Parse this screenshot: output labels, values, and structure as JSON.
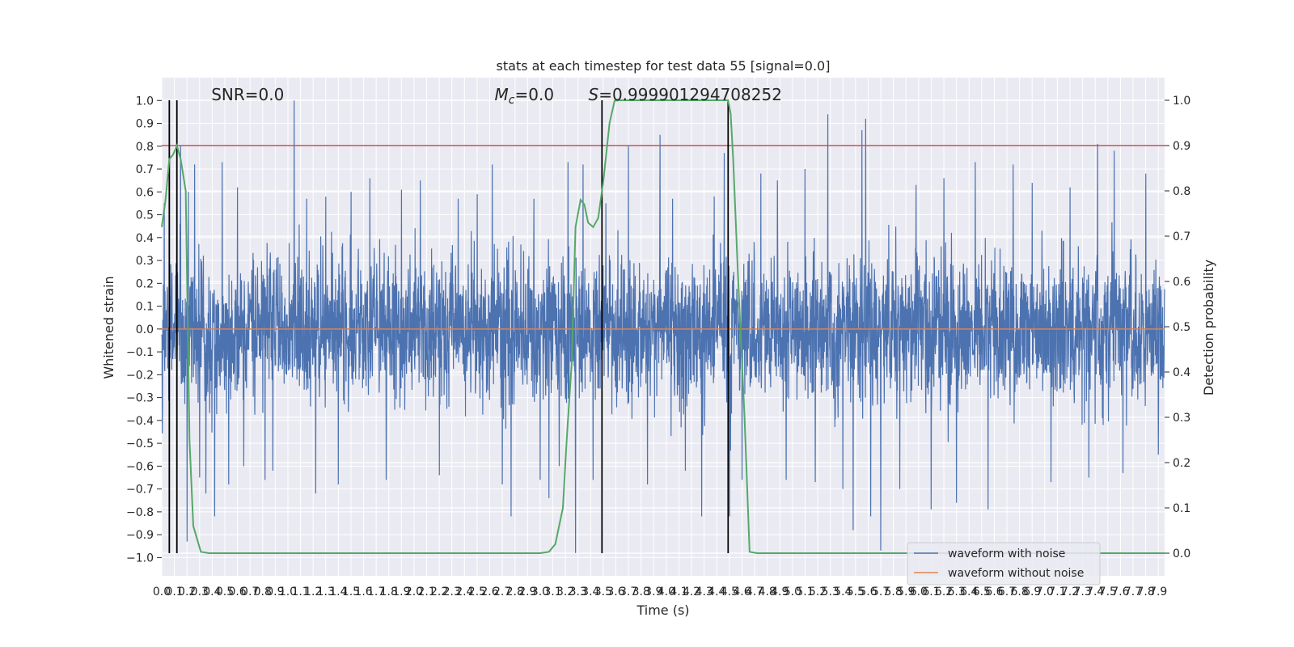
{
  "chart_data": {
    "type": "line",
    "title": "stats at each timestep for test data 55 [signal=0.0]",
    "xlabel": "Time (s)",
    "ylabel": "Whitened strain",
    "ylabel_right": "Detection probability",
    "xlim": [
      0.0,
      7.95
    ],
    "ylim": [
      -1.08,
      1.1
    ],
    "ylim_right": [
      -0.05,
      1.05
    ],
    "x_ticks": [
      0.0,
      0.1,
      0.2,
      0.3,
      0.4,
      0.5,
      0.6,
      0.7,
      0.8,
      0.9,
      1.0,
      1.1,
      1.2,
      1.3,
      1.4,
      1.5,
      1.6,
      1.7,
      1.8,
      1.9,
      2.0,
      2.1,
      2.2,
      2.3,
      2.4,
      2.5,
      2.6,
      2.7,
      2.8,
      2.9,
      3.0,
      3.1,
      3.2,
      3.3,
      3.4,
      3.5,
      3.6,
      3.7,
      3.8,
      3.9,
      4.0,
      4.1,
      4.2,
      4.3,
      4.4,
      4.5,
      4.6,
      4.7,
      4.8,
      4.9,
      5.0,
      5.1,
      5.2,
      5.3,
      5.4,
      5.5,
      5.6,
      5.7,
      5.8,
      5.9,
      6.0,
      6.1,
      6.2,
      6.3,
      6.4,
      6.5,
      6.6,
      6.7,
      6.8,
      6.9,
      7.0,
      7.1,
      7.2,
      7.3,
      7.4,
      7.5,
      7.6,
      7.7,
      7.8,
      7.9
    ],
    "x_tick_labels": [
      "0.0",
      "0.1",
      "0.2",
      "0.3",
      "0.4",
      "0.5",
      "0.6",
      "0.7",
      "0.8",
      "0.9",
      "1.0",
      "1.1",
      "1.2",
      "1.3",
      "1.4",
      "1.5",
      "1.6",
      "1.7",
      "1.8",
      "1.9",
      "2.0",
      "2.1",
      "2.2",
      "2.3",
      "2.4",
      "2.5",
      "2.6",
      "2.7",
      "2.8",
      "2.9",
      "3.0",
      "3.1",
      "3.2",
      "3.3",
      "3.4",
      "3.5",
      "3.6",
      "3.7",
      "3.8",
      "3.9",
      "4.0",
      "4.1",
      "4.2",
      "4.3",
      "4.4",
      "4.5",
      "4.6",
      "4.7",
      "4.8",
      "4.9",
      "5.0",
      "5.1",
      "5.2",
      "5.3",
      "5.4",
      "5.5",
      "5.6",
      "5.7",
      "5.8",
      "5.9",
      "6.0",
      "6.1",
      "6.2",
      "6.3",
      "6.4",
      "6.5",
      "6.6",
      "6.7",
      "6.8",
      "6.9",
      "7.0",
      "7.1",
      "7.2",
      "7.3",
      "7.4",
      "7.5",
      "7.6",
      "7.7",
      "7.8",
      "7.9"
    ],
    "y_ticks": [
      1.0,
      0.9,
      0.8,
      0.7,
      0.6,
      0.5,
      0.4,
      0.3,
      0.2,
      0.1,
      0.0,
      -0.1,
      -0.2,
      -0.3,
      -0.4,
      -0.5,
      -0.6,
      -0.7,
      -0.8,
      -0.9,
      -1.0
    ],
    "y_tick_labels": [
      "1.0",
      "0.9",
      "0.8",
      "0.7",
      "0.6",
      "0.5",
      "0.4",
      "0.3",
      "0.2",
      "0.1",
      "0.0",
      "−0.1",
      "−0.2",
      "−0.3",
      "−0.4",
      "−0.5",
      "−0.6",
      "−0.7",
      "−0.8",
      "−0.9",
      "−1.0"
    ],
    "y_right_ticks": [
      1.0,
      0.9,
      0.8,
      0.7,
      0.6,
      0.5,
      0.4,
      0.3,
      0.2,
      0.1,
      0.0
    ],
    "y_right_tick_labels": [
      "1.0",
      "0.9",
      "0.8",
      "0.7",
      "0.6",
      "0.5",
      "0.4",
      "0.3",
      "0.2",
      "0.1",
      "0.0"
    ],
    "annotations": [
      {
        "text": "SNR=0.0",
        "x": 0.2
      },
      {
        "prefix": "M",
        "sub": "c",
        "suffix": "=0.0",
        "x": 2.6
      },
      {
        "prefix": "S",
        "sub": "",
        "suffix": "=0.999901294708252",
        "x": 3.6
      }
    ],
    "threshold": {
      "y_right": 0.9,
      "color": "#c44e52"
    },
    "vertical_lines": [
      0.06,
      0.12,
      3.49,
      4.49
    ],
    "vertical_line_color": "#000000",
    "series": [
      {
        "name": "waveform with noise",
        "color": "#4c72b0",
        "axis": "left",
        "style": "noise",
        "envelope": 0.3,
        "spikes": [
          [
            0.02,
            0.55
          ],
          [
            0.15,
            0.8
          ],
          [
            0.21,
            0.6
          ],
          [
            0.2,
            -0.93
          ],
          [
            0.26,
            0.72
          ],
          [
            0.3,
            -0.65
          ],
          [
            0.35,
            -0.72
          ],
          [
            0.42,
            -0.82
          ],
          [
            0.48,
            0.73
          ],
          [
            0.53,
            -0.68
          ],
          [
            0.6,
            0.62
          ],
          [
            0.65,
            -0.6
          ],
          [
            0.82,
            -0.66
          ],
          [
            0.88,
            -0.62
          ],
          [
            1.05,
            1.0
          ],
          [
            1.15,
            0.57
          ],
          [
            1.22,
            -0.72
          ],
          [
            1.3,
            0.58
          ],
          [
            1.4,
            -0.68
          ],
          [
            1.5,
            0.6
          ],
          [
            1.65,
            0.66
          ],
          [
            1.78,
            -0.66
          ],
          [
            1.9,
            0.61
          ],
          [
            2.05,
            0.65
          ],
          [
            2.2,
            -0.64
          ],
          [
            2.35,
            0.57
          ],
          [
            2.5,
            0.59
          ],
          [
            2.62,
            0.72
          ],
          [
            2.7,
            -0.68
          ],
          [
            2.77,
            -0.82
          ],
          [
            2.95,
            0.57
          ],
          [
            3.0,
            -0.66
          ],
          [
            3.07,
            -0.74
          ],
          [
            3.15,
            -0.6
          ],
          [
            3.22,
            0.73
          ],
          [
            3.28,
            -0.98
          ],
          [
            3.34,
            0.72
          ],
          [
            3.42,
            -0.66
          ],
          [
            3.52,
            0.55
          ],
          [
            3.7,
            0.8
          ],
          [
            3.85,
            -0.68
          ],
          [
            3.95,
            0.85
          ],
          [
            4.05,
            0.57
          ],
          [
            4.15,
            -0.62
          ],
          [
            4.28,
            -0.82
          ],
          [
            4.38,
            0.58
          ],
          [
            4.46,
            0.77
          ],
          [
            4.5,
            -0.82
          ],
          [
            4.6,
            -0.66
          ],
          [
            4.75,
            0.68
          ],
          [
            4.88,
            0.65
          ],
          [
            4.95,
            -0.66
          ],
          [
            5.1,
            0.7
          ],
          [
            5.18,
            -0.67
          ],
          [
            5.28,
            0.94
          ],
          [
            5.4,
            -0.7
          ],
          [
            5.48,
            -0.88
          ],
          [
            5.55,
            0.87
          ],
          [
            5.58,
            0.92
          ],
          [
            5.62,
            -0.82
          ],
          [
            5.7,
            -0.97
          ],
          [
            5.85,
            -0.7
          ],
          [
            5.98,
            0.63
          ],
          [
            6.1,
            -0.79
          ],
          [
            6.2,
            0.66
          ],
          [
            6.3,
            -0.76
          ],
          [
            6.45,
            0.73
          ],
          [
            6.55,
            -0.79
          ],
          [
            6.75,
            0.72
          ],
          [
            6.9,
            0.64
          ],
          [
            7.05,
            -0.67
          ],
          [
            7.2,
            0.62
          ],
          [
            7.35,
            -0.65
          ],
          [
            7.42,
            0.81
          ],
          [
            7.55,
            0.78
          ],
          [
            7.62,
            -0.63
          ],
          [
            7.8,
            0.68
          ],
          [
            7.9,
            -0.55
          ]
        ],
        "values": []
      },
      {
        "name": "waveform without noise",
        "color": "#dd8452",
        "axis": "left",
        "x": [
          0.0,
          7.95
        ],
        "values": [
          0.0,
          0.0
        ]
      },
      {
        "name": "",
        "color": "#55a868",
        "axis": "right",
        "x": [
          0.0,
          0.03,
          0.06,
          0.09,
          0.12,
          0.15,
          0.19,
          0.22,
          0.25,
          0.31,
          0.375,
          0.4,
          0.5,
          1.0,
          2.0,
          3.0,
          3.07,
          3.12,
          3.18,
          3.21,
          3.25,
          3.28,
          3.32,
          3.35,
          3.38,
          3.42,
          3.46,
          3.5,
          3.55,
          3.59,
          3.63,
          3.68,
          3.8,
          4.0,
          4.3,
          4.49,
          4.51,
          4.53,
          4.57,
          4.62,
          4.66,
          4.72,
          5.0,
          6.0,
          7.95
        ],
        "values": [
          0.72,
          0.78,
          0.87,
          0.88,
          0.9,
          0.87,
          0.8,
          0.25,
          0.06,
          0.003,
          0.0,
          0.0,
          0.0,
          0.0,
          0.0,
          0.0,
          0.003,
          0.02,
          0.1,
          0.25,
          0.42,
          0.72,
          0.78,
          0.77,
          0.73,
          0.72,
          0.74,
          0.82,
          0.95,
          0.999,
          1.0,
          1.0,
          1.0,
          1.0,
          1.0,
          1.0,
          0.97,
          0.87,
          0.6,
          0.3,
          0.003,
          0.0,
          0.0,
          0.0,
          0.0
        ]
      }
    ],
    "legend": {
      "placement": "bottom-right",
      "entries": [
        "waveform with noise",
        "waveform without noise"
      ]
    },
    "grid": true,
    "plot_background": "#eaeaf2"
  }
}
